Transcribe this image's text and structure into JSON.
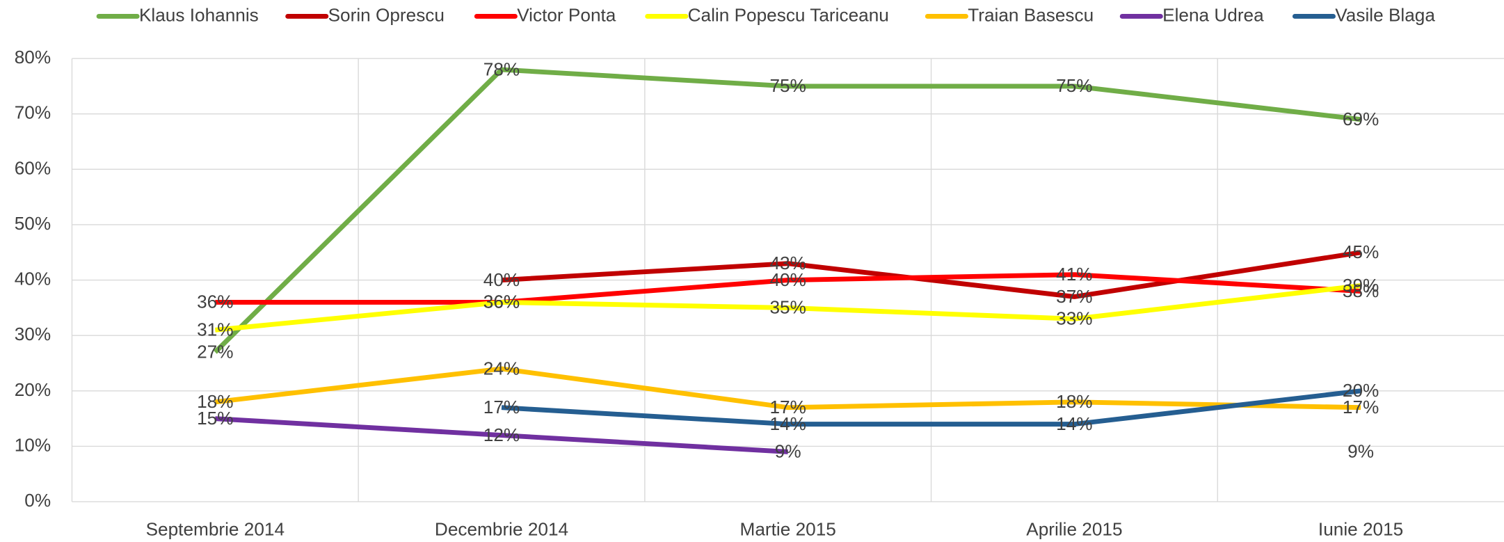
{
  "chart_data": {
    "type": "line",
    "categories": [
      "Septembrie 2014",
      "Decembrie 2014",
      "Martie 2015",
      "Aprilie 2015",
      "Iunie 2015"
    ],
    "series": [
      {
        "name": "Klaus Iohannis",
        "color": "#70ad47",
        "values": [
          27,
          78,
          75,
          75,
          69
        ],
        "value_labels": [
          "27%",
          "78%",
          "75%",
          "75%",
          "69%"
        ]
      },
      {
        "name": "Sorin Oprescu",
        "color": "#c00000",
        "values": [
          null,
          40,
          43,
          37,
          45
        ],
        "value_labels": [
          null,
          "40%",
          "43%",
          "37%",
          "45%"
        ]
      },
      {
        "name": "Victor Ponta",
        "color": "#ff0000",
        "values": [
          36,
          36,
          40,
          41,
          38
        ],
        "value_labels": [
          "36%",
          "36%",
          "40%",
          "41%",
          "38%"
        ]
      },
      {
        "name": "Calin Popescu Tariceanu",
        "color": "#ffff00",
        "values": [
          31,
          36,
          35,
          33,
          39
        ],
        "value_labels": [
          "31%",
          "36%",
          "35%",
          "33%",
          "39%"
        ]
      },
      {
        "name": "Traian Basescu",
        "color": "#ffc000",
        "values": [
          18,
          24,
          17,
          18,
          17
        ],
        "value_labels": [
          "18%",
          "24%",
          "17%",
          "18%",
          "17%"
        ]
      },
      {
        "name": "Elena Udrea",
        "color": "#7030a0",
        "values": [
          15,
          12,
          9,
          null,
          9
        ],
        "value_labels": [
          "15%",
          "12%",
          "9%",
          null,
          "9%"
        ]
      },
      {
        "name": "Vasile Blaga",
        "color": "#255e91",
        "values": [
          null,
          17,
          14,
          14,
          20
        ],
        "value_labels": [
          null,
          "17%",
          "14%",
          "14%",
          "20%"
        ]
      }
    ],
    "ylim": [
      0,
      80
    ],
    "yticks": [
      {
        "value": 0,
        "label": "0%"
      },
      {
        "value": 10,
        "label": "10%"
      },
      {
        "value": 20,
        "label": "20%"
      },
      {
        "value": 30,
        "label": "30%"
      },
      {
        "value": 40,
        "label": "40%"
      },
      {
        "value": 50,
        "label": "50%"
      },
      {
        "value": 60,
        "label": "60%"
      },
      {
        "value": 70,
        "label": "70%"
      },
      {
        "value": 80,
        "label": "80%"
      }
    ],
    "grid": true,
    "legend": "top"
  }
}
